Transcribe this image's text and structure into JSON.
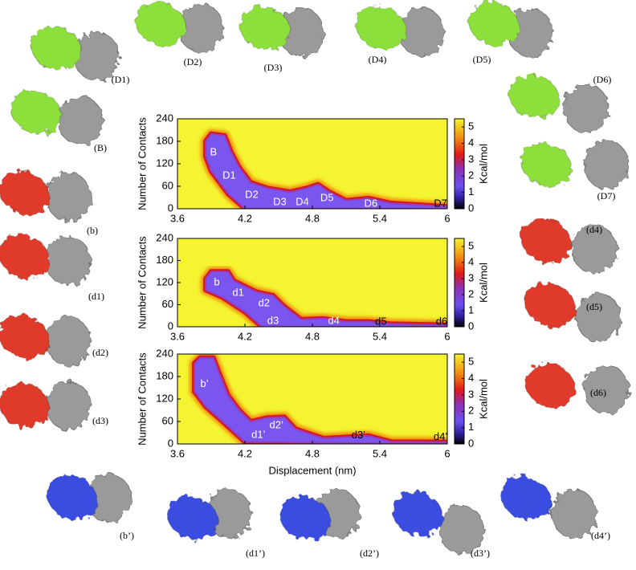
{
  "chart_data": [
    {
      "type": "heatmap",
      "ylabel": "Number of Contacts",
      "colorbar_label": "Kcal/mol",
      "xlim": [
        3.6,
        6.0
      ],
      "xticks": [
        3.6,
        4.2,
        4.8,
        5.4,
        6.0
      ],
      "ylim": [
        0,
        240
      ],
      "yticks": [
        0,
        60,
        120,
        180,
        240
      ],
      "clim": [
        0,
        5.5
      ],
      "cticks": [
        0,
        1,
        2,
        3,
        4,
        5
      ],
      "basin": {
        "upper_x": [
          3.85,
          3.9,
          4.02,
          4.08,
          4.15,
          4.25,
          4.4,
          4.6,
          4.75,
          4.85,
          4.95,
          5.1,
          5.3,
          5.5,
          6.0
        ],
        "upper_y": [
          180,
          200,
          195,
          150,
          110,
          70,
          55,
          45,
          55,
          65,
          45,
          22,
          28,
          15,
          6
        ],
        "lower_x": [
          6.0,
          4.2,
          4.05,
          3.9,
          3.85
        ],
        "lower_y": [
          0,
          0,
          40,
          100,
          140
        ]
      },
      "annotations": [
        {
          "text": "B",
          "x": 3.92,
          "y": 150,
          "color": "#ffffff"
        },
        {
          "text": "D1",
          "x": 4.06,
          "y": 88,
          "color": "#ffffff"
        },
        {
          "text": "D2",
          "x": 4.26,
          "y": 36,
          "color": "#ffffff"
        },
        {
          "text": "D3",
          "x": 4.51,
          "y": 17,
          "color": "#ffffff"
        },
        {
          "text": "D4",
          "x": 4.71,
          "y": 17,
          "color": "#ffffff"
        },
        {
          "text": "D5",
          "x": 4.93,
          "y": 28,
          "color": "#ffffff"
        },
        {
          "text": "D6",
          "x": 5.32,
          "y": 13,
          "color": "#ffffff"
        },
        {
          "text": "D7",
          "x": 5.94,
          "y": 13,
          "color": "#000000"
        }
      ]
    },
    {
      "type": "heatmap",
      "ylabel": "Number of Contacts",
      "colorbar_label": "Kcal/mol",
      "xlim": [
        3.6,
        6.0
      ],
      "xticks": [
        3.6,
        4.2,
        4.8,
        5.4,
        6.0
      ],
      "ylim": [
        0,
        240
      ],
      "yticks": [
        0,
        60,
        120,
        180,
        240
      ],
      "clim": [
        0,
        5.5
      ],
      "cticks": [
        0,
        1,
        2,
        3,
        4,
        5
      ],
      "basin": {
        "upper_x": [
          3.85,
          3.9,
          4.05,
          4.1,
          4.2,
          4.3,
          4.45,
          4.55,
          4.7,
          4.9,
          5.1,
          5.3,
          5.5,
          6.0
        ],
        "upper_y": [
          130,
          150,
          150,
          125,
          110,
          95,
          85,
          55,
          20,
          22,
          14,
          14,
          8,
          5
        ],
        "lower_x": [
          6.0,
          4.35,
          4.2,
          4.0,
          3.85
        ],
        "lower_y": [
          0,
          0,
          40,
          80,
          100
        ]
      },
      "annotations": [
        {
          "text": "b",
          "x": 3.95,
          "y": 120,
          "color": "#ffffff"
        },
        {
          "text": "d1",
          "x": 4.14,
          "y": 92,
          "color": "#ffffff"
        },
        {
          "text": "d2",
          "x": 4.37,
          "y": 63,
          "color": "#ffffff"
        },
        {
          "text": "d3",
          "x": 4.45,
          "y": 15,
          "color": "#ffffff"
        },
        {
          "text": "d4",
          "x": 4.99,
          "y": 15,
          "color": "#ffffff"
        },
        {
          "text": "d5",
          "x": 5.41,
          "y": 13,
          "color": "#000000"
        },
        {
          "text": "d6",
          "x": 5.95,
          "y": 13,
          "color": "#000000"
        }
      ]
    },
    {
      "type": "heatmap",
      "xlabel": "Displacement (nm)",
      "ylabel": "Number of Contacts",
      "colorbar_label": "Kcal/mol",
      "xlim": [
        3.6,
        6.0
      ],
      "xticks": [
        3.6,
        4.2,
        4.8,
        5.4,
        6.0
      ],
      "ylim": [
        0,
        240
      ],
      "yticks": [
        0,
        60,
        120,
        180,
        240
      ],
      "clim": [
        0,
        5.5
      ],
      "cticks": [
        0,
        1,
        2,
        3,
        4,
        5
      ],
      "basin": {
        "upper_x": [
          3.75,
          3.8,
          3.92,
          3.97,
          4.05,
          4.15,
          4.25,
          4.4,
          4.55,
          4.65,
          4.9,
          5.3,
          5.5,
          6.0
        ],
        "upper_y": [
          215,
          230,
          230,
          190,
          130,
          90,
          60,
          70,
          72,
          40,
          15,
          22,
          6,
          5
        ],
        "lower_x": [
          6.0,
          4.2,
          4.0,
          3.85,
          3.75
        ],
        "lower_y": [
          0,
          5,
          60,
          100,
          140
        ]
      },
      "annotations": [
        {
          "text": "b’",
          "x": 3.84,
          "y": 160,
          "color": "#ffffff"
        },
        {
          "text": "d1’",
          "x": 4.32,
          "y": 23,
          "color": "#ffffff"
        },
        {
          "text": "d2’",
          "x": 4.48,
          "y": 49,
          "color": "#ffffff"
        },
        {
          "text": "d3’",
          "x": 5.21,
          "y": 22,
          "color": "#000000"
        },
        {
          "text": "d4’",
          "x": 5.94,
          "y": 18,
          "color": "#000000"
        }
      ]
    }
  ],
  "structures": [
    "(D1)",
    "(D2)",
    "(D3)",
    "(D4)",
    "(D5)",
    "(D6)",
    "(B)",
    "(D7)",
    "(b)",
    "(d1)",
    "(d2)",
    "(d3)",
    "(d4)",
    "(d5)",
    "(d6)",
    "(b’)",
    "(d1’)",
    "(d2’)",
    "(d3’)",
    "(d4’)"
  ]
}
